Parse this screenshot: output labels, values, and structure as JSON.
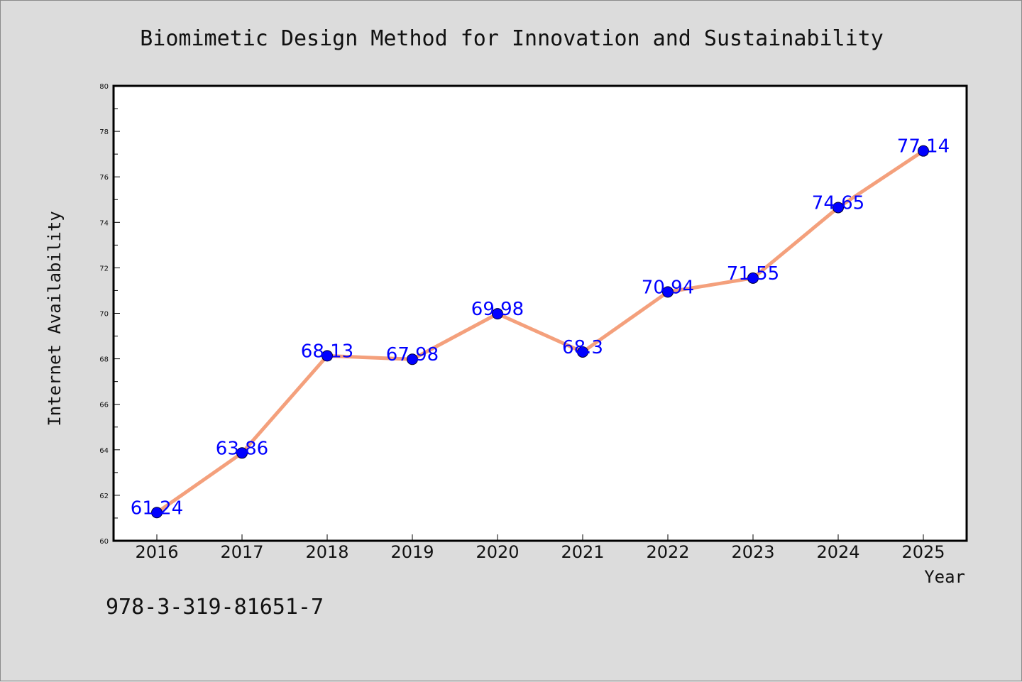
{
  "colors": {
    "background": "#dcdcdc",
    "plot_area": "#ffffff",
    "axes": "#000000",
    "line": "#f4a07c",
    "marker": "#0000ff",
    "data_label": "#0000ff"
  },
  "footer": {
    "isbn": "978-3-319-81651-7"
  },
  "chart_data": {
    "type": "line",
    "title": "Biomimetic Design Method for Innovation and Sustainability",
    "xlabel": "Year",
    "ylabel": "Internet Availability",
    "categories": [
      "2016",
      "2017",
      "2018",
      "2019",
      "2020",
      "2021",
      "2022",
      "2023",
      "2024",
      "2025"
    ],
    "y_tick_labels": [
      "60",
      "62",
      "64",
      "66",
      "68",
      "70",
      "72",
      "74",
      "76",
      "78",
      "80"
    ],
    "ylim": [
      60,
      80
    ],
    "grid": false,
    "legend": "none",
    "series": [
      {
        "values": [
          61.24,
          63.86,
          68.13,
          67.98,
          69.98,
          68.3,
          70.94,
          71.55,
          74.65,
          77.14
        ],
        "data_labels": [
          "61.24",
          "63.86",
          "68.13",
          "67.98",
          "69.98",
          "68.3",
          "70.94",
          "71.55",
          "74.65",
          "77.14"
        ]
      }
    ]
  }
}
